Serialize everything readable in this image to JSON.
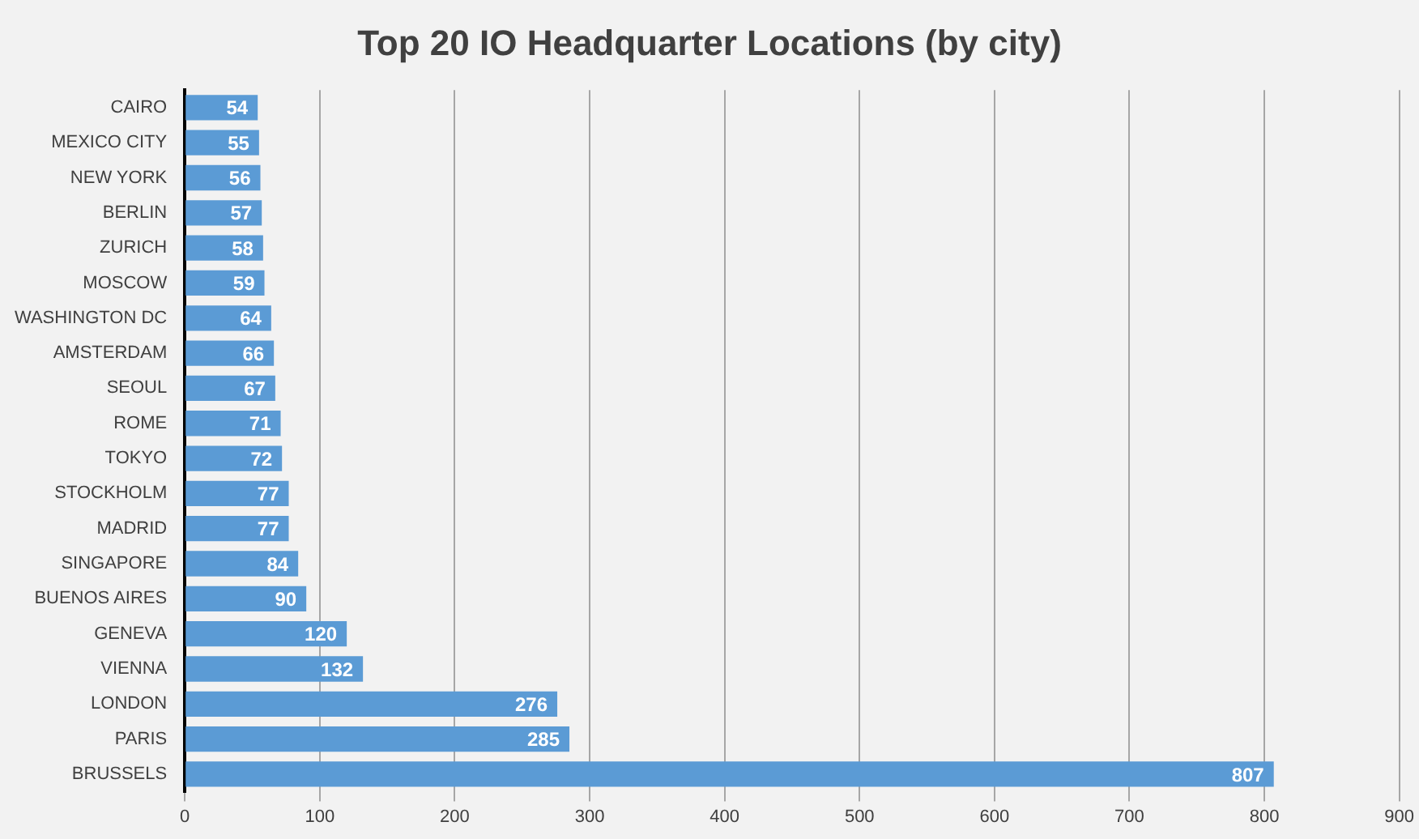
{
  "chart_data": {
    "type": "bar",
    "title": "Top 20 IO Headquarter Locations (by city)",
    "orientation": "horizontal",
    "categories": [
      "CAIRO",
      "MEXICO CITY",
      "NEW YORK",
      "BERLIN",
      "ZURICH",
      "MOSCOW",
      "WASHINGTON DC",
      "AMSTERDAM",
      "SEOUL",
      "ROME",
      "TOKYO",
      "STOCKHOLM",
      "MADRID",
      "SINGAPORE",
      "BUENOS AIRES",
      "GENEVA",
      "VIENNA",
      "LONDON",
      "PARIS",
      "BRUSSELS"
    ],
    "values": [
      54,
      55,
      56,
      57,
      58,
      59,
      64,
      66,
      67,
      71,
      72,
      77,
      77,
      84,
      90,
      120,
      132,
      276,
      285,
      807
    ],
    "color": "#5b9bd5",
    "xlim": [
      0,
      900
    ],
    "xticks": [
      0,
      100,
      200,
      300,
      400,
      500,
      600,
      700,
      800,
      900
    ],
    "grid": "x",
    "data_labels": true
  }
}
